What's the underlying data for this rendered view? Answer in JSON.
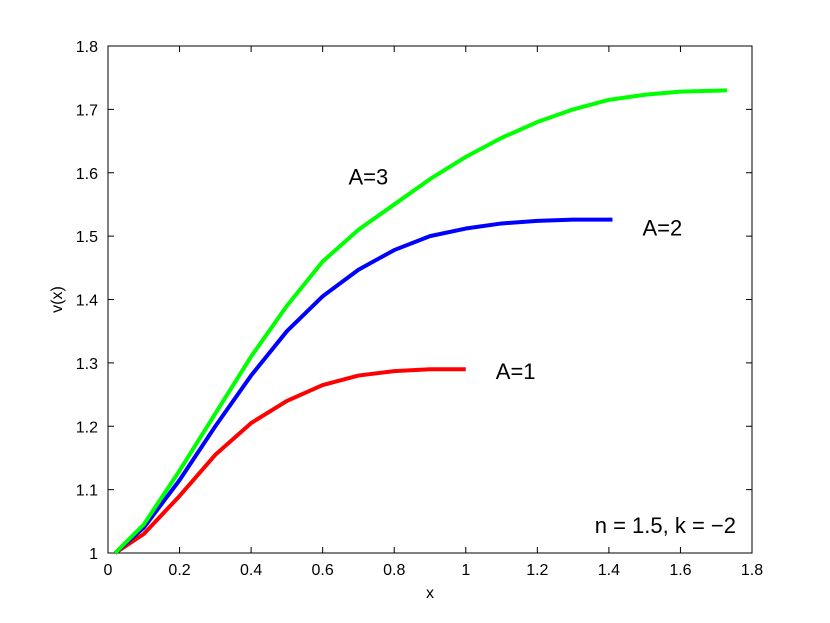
{
  "chart_data": {
    "type": "line",
    "xlabel": "x",
    "ylabel": "v(x)",
    "xlim": [
      0,
      1.8
    ],
    "ylim": [
      1,
      1.8
    ],
    "xticks": [
      0,
      0.2,
      0.4,
      0.6,
      0.8,
      1,
      1.2,
      1.4,
      1.6,
      1.8
    ],
    "yticks": [
      1,
      1.1,
      1.2,
      1.3,
      1.4,
      1.5,
      1.6,
      1.7,
      1.8
    ],
    "xtick_labels": [
      "0",
      "0.2",
      "0.4",
      "0.6",
      "0.8",
      "1",
      "1.2",
      "1.4",
      "1.6",
      "1.8"
    ],
    "ytick_labels": [
      "1",
      "1.1",
      "1.2",
      "1.3",
      "1.4",
      "1.5",
      "1.6",
      "1.7",
      "1.8"
    ],
    "grid": false,
    "annotation": "n = 1.5, k = −2",
    "series": [
      {
        "label": "A=1",
        "color": "#ff0000",
        "x": [
          0.02,
          0.1,
          0.2,
          0.3,
          0.4,
          0.5,
          0.6,
          0.7,
          0.8,
          0.9,
          1.0
        ],
        "y": [
          1.0,
          1.03,
          1.09,
          1.155,
          1.205,
          1.24,
          1.265,
          1.28,
          1.287,
          1.29,
          1.29
        ]
      },
      {
        "label": "A=2",
        "color": "#0000ff",
        "x": [
          0.02,
          0.1,
          0.2,
          0.3,
          0.4,
          0.5,
          0.6,
          0.7,
          0.8,
          0.9,
          1.0,
          1.1,
          1.2,
          1.3,
          1.41
        ],
        "y": [
          1.0,
          1.04,
          1.115,
          1.2,
          1.28,
          1.35,
          1.405,
          1.447,
          1.478,
          1.5,
          1.512,
          1.52,
          1.524,
          1.526,
          1.526
        ]
      },
      {
        "label": "A=3",
        "color": "#00ff00",
        "x": [
          0.02,
          0.1,
          0.2,
          0.3,
          0.4,
          0.5,
          0.6,
          0.7,
          0.8,
          0.9,
          1.0,
          1.1,
          1.2,
          1.3,
          1.4,
          1.5,
          1.6,
          1.73
        ],
        "y": [
          1.0,
          1.045,
          1.13,
          1.22,
          1.31,
          1.39,
          1.46,
          1.51,
          1.55,
          1.59,
          1.625,
          1.655,
          1.68,
          1.7,
          1.715,
          1.723,
          1.728,
          1.73
        ]
      }
    ]
  }
}
